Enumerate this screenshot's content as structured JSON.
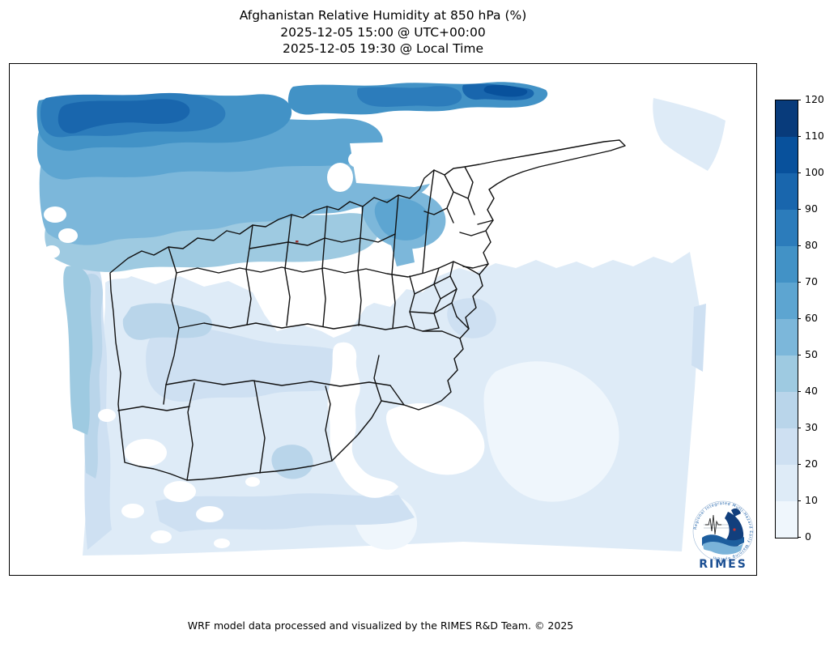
{
  "title": {
    "line1": "Afghanistan Relative Humidity at 850 hPa (%)",
    "line2": "2025-12-05 15:00 @ UTC+00:00",
    "line3": "2025-12-05 19:30 @ Local Time"
  },
  "footer": {
    "credit": "WRF model data processed and visualized by the RIMES R&D Team. © 2025"
  },
  "colorbar": {
    "ticks": [
      0,
      10,
      20,
      30,
      40,
      50,
      60,
      70,
      80,
      90,
      100,
      110,
      120
    ],
    "segment_colors": [
      "#eff6fc",
      "#deebf7",
      "#cee0f2",
      "#b9d5ea",
      "#9ecae1",
      "#7cb7da",
      "#5da5d1",
      "#4292c6",
      "#2c7cbb",
      "#1966ad",
      "#08519c",
      "#083b7b"
    ],
    "outline_color": "#000000"
  },
  "logo": {
    "wordmark": "RIMES",
    "ring_text": "Regional Integrated Multi-Hazard Early Warning System",
    "brand_blue": "#1b4f93"
  },
  "map": {
    "boundary_color": "#111111",
    "masked_terrain_color": "#ffffff"
  },
  "chart_data": {
    "type": "heatmap",
    "subtype": "filled-contour-weather-map",
    "title": "Afghanistan Relative Humidity at 850 hPa (%)",
    "variable": "Relative Humidity at 850 hPa",
    "units": "%",
    "valid_time_utc": "2025-12-05 15:00 @ UTC+00:00",
    "valid_time_local": "2025-12-05 19:30 @ Local Time",
    "region": "Afghanistan and surrounding WRF model domain with province boundaries",
    "levels": [
      0,
      10,
      20,
      30,
      40,
      50,
      60,
      70,
      80,
      90,
      100,
      110,
      120
    ],
    "colormap": "Blues (12 discrete bands)",
    "legend_position": "right vertical colorbar",
    "field_summary": [
      {
        "area": "northwest corner of domain",
        "rh_percent": "70-100"
      },
      {
        "area": "narrow strip along top (north) edge",
        "rh_percent": "70-110"
      },
      {
        "area": "northern Afghanistan provinces band",
        "rh_percent": "50-70"
      },
      {
        "area": "Badakhshan / northeast provinces",
        "rh_percent": "50-70"
      },
      {
        "area": "western edge of domain",
        "rh_percent": "30-50"
      },
      {
        "area": "southwest Afghanistan (Nimroz/Helmand/Kandahar)",
        "rh_percent": "10-30"
      },
      {
        "area": "central and eastern Afghanistan highlands",
        "rh_percent": "masked / below 10"
      },
      {
        "area": "southeast of domain beyond border",
        "rh_percent": "0-20"
      },
      {
        "area": "small patch in upper-right corner",
        "rh_percent": "10-20"
      }
    ]
  }
}
